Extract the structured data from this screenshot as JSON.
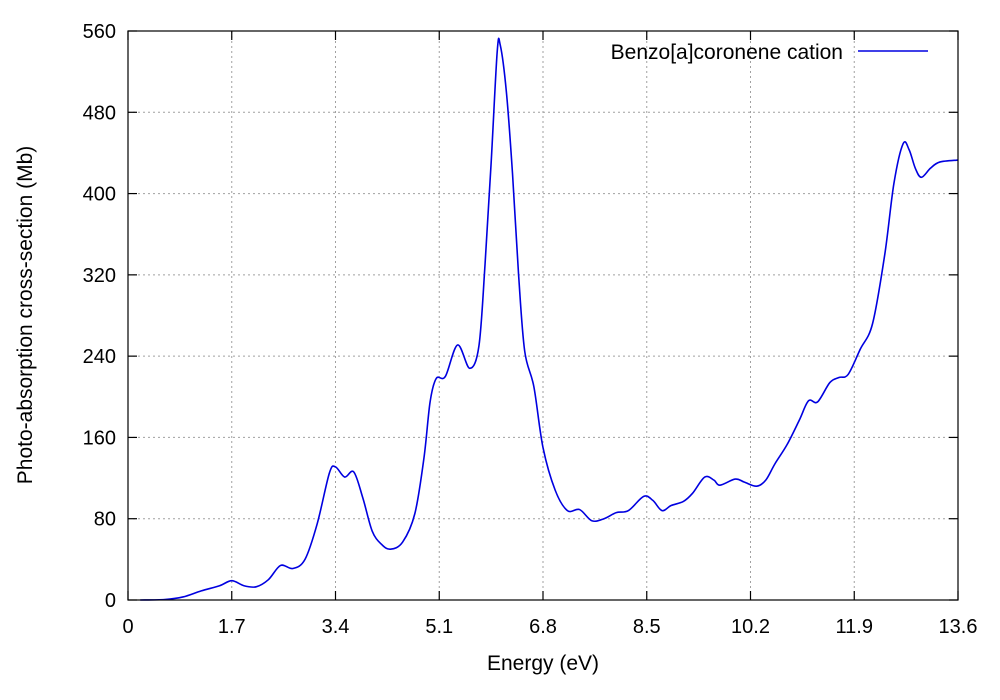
{
  "chart_data": {
    "type": "line",
    "title": "",
    "xlabel": "Energy (eV)",
    "ylabel": "Photo-absorption cross-section (Mb)",
    "xlim": [
      0,
      13.6
    ],
    "ylim": [
      0,
      560
    ],
    "xticks": [
      "0",
      "1.7",
      "3.4",
      "5.1",
      "6.8",
      "8.5",
      "10.2",
      "11.9",
      "13.6"
    ],
    "yticks": [
      "0",
      "80",
      "160",
      "240",
      "320",
      "400",
      "480",
      "560"
    ],
    "grid": true,
    "legend_position": "top-right",
    "series": [
      {
        "name": "Benzo[a]coronene cation",
        "color": "#0000e0",
        "points": [
          [
            0.2,
            0
          ],
          [
            0.6,
            0.5
          ],
          [
            0.9,
            3
          ],
          [
            1.2,
            9
          ],
          [
            1.5,
            14
          ],
          [
            1.7,
            19
          ],
          [
            1.9,
            14
          ],
          [
            2.1,
            13
          ],
          [
            2.3,
            20
          ],
          [
            2.5,
            34
          ],
          [
            2.7,
            31
          ],
          [
            2.9,
            40
          ],
          [
            3.1,
            75
          ],
          [
            3.3,
            125
          ],
          [
            3.4,
            131
          ],
          [
            3.55,
            121
          ],
          [
            3.7,
            126
          ],
          [
            3.85,
            100
          ],
          [
            4.0,
            68
          ],
          [
            4.15,
            55
          ],
          [
            4.3,
            50
          ],
          [
            4.5,
            57
          ],
          [
            4.7,
            85
          ],
          [
            4.85,
            140
          ],
          [
            4.95,
            195
          ],
          [
            5.05,
            218
          ],
          [
            5.2,
            220
          ],
          [
            5.4,
            251
          ],
          [
            5.6,
            228
          ],
          [
            5.75,
            250
          ],
          [
            5.85,
            330
          ],
          [
            5.95,
            430
          ],
          [
            6.05,
            540
          ],
          [
            6.1,
            546
          ],
          [
            6.2,
            500
          ],
          [
            6.3,
            420
          ],
          [
            6.4,
            320
          ],
          [
            6.5,
            245
          ],
          [
            6.65,
            210
          ],
          [
            6.8,
            150
          ],
          [
            7.0,
            108
          ],
          [
            7.2,
            88
          ],
          [
            7.4,
            89
          ],
          [
            7.6,
            78
          ],
          [
            7.8,
            80
          ],
          [
            8.0,
            86
          ],
          [
            8.2,
            88
          ],
          [
            8.45,
            102
          ],
          [
            8.6,
            98
          ],
          [
            8.75,
            88
          ],
          [
            8.9,
            93
          ],
          [
            9.1,
            97
          ],
          [
            9.25,
            105
          ],
          [
            9.45,
            121
          ],
          [
            9.6,
            118
          ],
          [
            9.7,
            113
          ],
          [
            9.95,
            119
          ],
          [
            10.1,
            116
          ],
          [
            10.3,
            112
          ],
          [
            10.45,
            118
          ],
          [
            10.6,
            134
          ],
          [
            10.8,
            153
          ],
          [
            11.0,
            177
          ],
          [
            11.15,
            196
          ],
          [
            11.3,
            195
          ],
          [
            11.5,
            214
          ],
          [
            11.65,
            219
          ],
          [
            11.8,
            222
          ],
          [
            12.0,
            247
          ],
          [
            12.2,
            272
          ],
          [
            12.4,
            340
          ],
          [
            12.55,
            410
          ],
          [
            12.7,
            449
          ],
          [
            12.8,
            443
          ],
          [
            12.9,
            425
          ],
          [
            13.0,
            416
          ],
          [
            13.15,
            425
          ],
          [
            13.3,
            431
          ],
          [
            13.6,
            433
          ]
        ]
      }
    ]
  }
}
